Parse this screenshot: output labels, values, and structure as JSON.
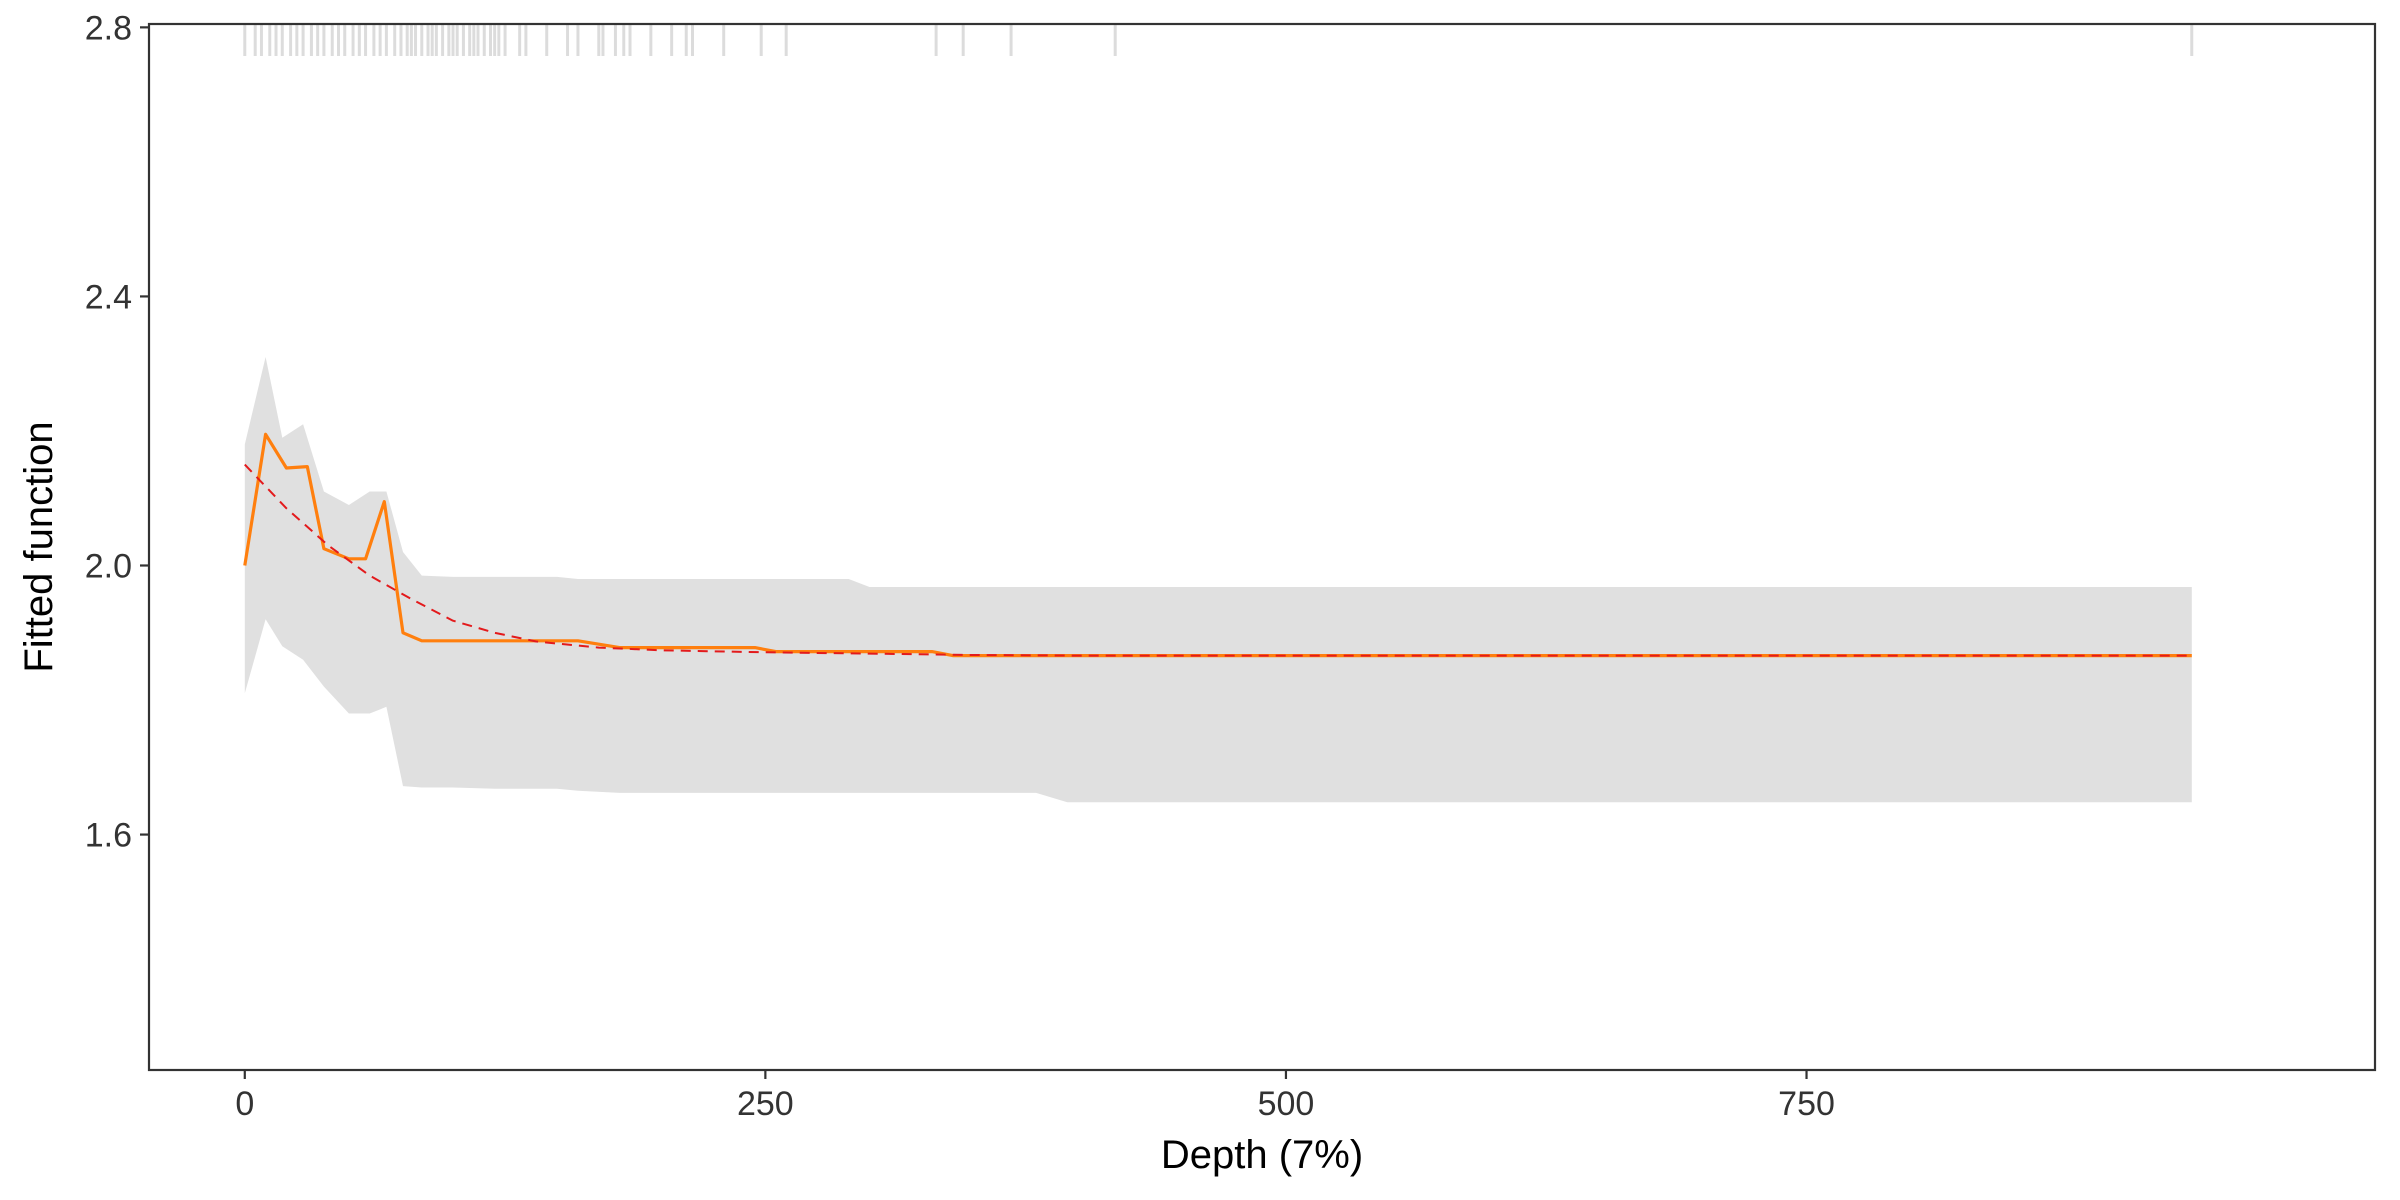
{
  "chart_data": {
    "type": "line",
    "title": "",
    "xlabel": "Depth  (7%)",
    "ylabel": "Fitted function",
    "xlim": [
      -46,
      1023
    ],
    "ylim": [
      1.25,
      2.805
    ],
    "x_ticks": [
      0,
      250,
      500,
      750
    ],
    "x_tick_labels": [
      "0",
      "250",
      "500",
      "750"
    ],
    "y_ticks": [
      1.6,
      2.0,
      2.4,
      2.8
    ],
    "y_tick_labels": [
      "1.6",
      "2.0",
      "2.4",
      "2.8"
    ],
    "grid": false,
    "legend": "none",
    "colors": {
      "fitted": "#ff7f0e",
      "smooth": "#e31a1c",
      "band": "#e0e0e0",
      "rug": "#dcdcdc",
      "axis": "#333333"
    },
    "series": [
      {
        "style": "solid",
        "color": "#ff7f0e",
        "x": [
          0,
          10,
          20,
          30,
          38,
          50,
          58,
          67,
          76,
          85,
          100,
          120,
          150,
          160,
          180,
          200,
          230,
          245,
          255,
          300,
          330,
          340,
          400,
          600,
          935
        ],
        "y": [
          2.0,
          2.195,
          2.145,
          2.147,
          2.025,
          2.01,
          2.01,
          2.095,
          1.9,
          1.888,
          1.888,
          1.888,
          1.888,
          1.888,
          1.878,
          1.878,
          1.878,
          1.878,
          1.872,
          1.872,
          1.872,
          1.866,
          1.866,
          1.866,
          1.866
        ]
      },
      {
        "style": "dashed",
        "color": "#e31a1c",
        "x": [
          0,
          20,
          40,
          60,
          80,
          100,
          120,
          140,
          170,
          200,
          250,
          300,
          350,
          400,
          500,
          700,
          935
        ],
        "y": [
          2.15,
          2.085,
          2.03,
          1.985,
          1.95,
          1.918,
          1.9,
          1.887,
          1.878,
          1.874,
          1.871,
          1.869,
          1.867,
          1.866,
          1.866,
          1.866,
          1.866
        ]
      }
    ],
    "band": {
      "color": "#e0e0e0",
      "x": [
        0,
        10,
        18,
        28,
        38,
        50,
        60,
        68,
        76,
        85,
        100,
        120,
        150,
        160,
        180,
        200,
        230,
        245,
        255,
        290,
        300,
        330,
        340,
        380,
        395,
        600,
        935
      ],
      "upper": [
        2.18,
        2.31,
        2.19,
        2.21,
        2.11,
        2.09,
        2.11,
        2.11,
        2.02,
        1.985,
        1.983,
        1.983,
        1.983,
        1.98,
        1.98,
        1.98,
        1.98,
        1.98,
        1.98,
        1.98,
        1.968,
        1.968,
        1.968,
        1.968,
        1.968,
        1.968,
        1.968
      ],
      "lower": [
        1.81,
        1.92,
        1.88,
        1.86,
        1.82,
        1.78,
        1.78,
        1.79,
        1.672,
        1.67,
        1.67,
        1.668,
        1.668,
        1.665,
        1.662,
        1.662,
        1.662,
        1.662,
        1.662,
        1.662,
        1.662,
        1.662,
        1.662,
        1.662,
        1.648,
        1.648,
        1.648
      ]
    },
    "rug": [
      0,
      5,
      8,
      12,
      15,
      18,
      22,
      25,
      28,
      32,
      35,
      38,
      42,
      45,
      48,
      52,
      55,
      58,
      62,
      65,
      68,
      72,
      75,
      78,
      80,
      82,
      85,
      88,
      90,
      92,
      95,
      98,
      100,
      102,
      105,
      108,
      110,
      112,
      115,
      118,
      120,
      122,
      125,
      132,
      135,
      145,
      155,
      160,
      170,
      172,
      178,
      182,
      185,
      195,
      205,
      212,
      215,
      230,
      248,
      260,
      332,
      345,
      368,
      418,
      935
    ]
  }
}
